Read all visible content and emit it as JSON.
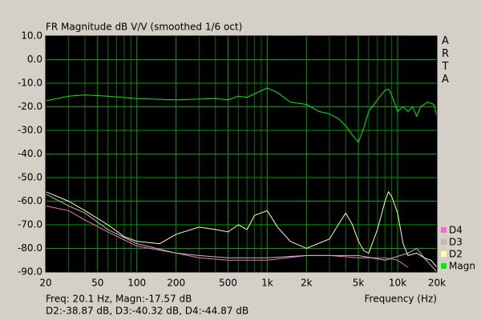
{
  "chart_data": {
    "type": "line",
    "title": "FR Magnitude dB V/V (smoothed 1/6 oct)",
    "brand": "ARTA",
    "xlabel": "Frequency (Hz)",
    "status": [
      "Freq: 20.1 Hz, Magn:-17.57 dB",
      "D2:-38.87 dB, D3:-40.32 dB, D4:-44.87 dB"
    ],
    "xscale": "log",
    "grid": true,
    "legend": "lower right",
    "xlim": [
      20,
      20000
    ],
    "ylim": [
      -90,
      10
    ],
    "xticks": [
      20,
      50,
      100,
      200,
      500,
      {
        "value": 1000,
        "label": "1k"
      },
      {
        "value": 2000,
        "label": "2k"
      },
      {
        "value": 5000,
        "label": "5k"
      },
      {
        "value": 10000,
        "label": "10k"
      },
      {
        "value": 20000,
        "label": "20k"
      }
    ],
    "xminorticks": [
      30,
      40,
      60,
      70,
      80,
      90,
      300,
      400,
      600,
      700,
      800,
      900,
      3000,
      4000,
      6000,
      7000,
      8000,
      9000
    ],
    "yticks": [
      {
        "value": 10,
        "label": "10.0"
      },
      {
        "value": 0,
        "label": "0.0"
      },
      {
        "value": -10,
        "label": "-10.0"
      },
      {
        "value": -20,
        "label": "-20.0"
      },
      {
        "value": -30,
        "label": "-30.0"
      },
      {
        "value": -40,
        "label": "-40.0"
      },
      {
        "value": -50,
        "label": "-50.0"
      },
      {
        "value": -60,
        "label": "-60.0"
      },
      {
        "value": -70,
        "label": "-70.0"
      },
      {
        "value": -80,
        "label": "-80.0"
      },
      {
        "value": -90,
        "label": "-90.0"
      }
    ],
    "series": [
      {
        "name": "D4",
        "color": "#ff66cc",
        "x": [
          20,
          30,
          40,
          60,
          100,
          200,
          300,
          500,
          1000,
          2000,
          3000,
          5000,
          8000,
          10000,
          12000
        ],
        "values": [
          -62,
          -64,
          -68,
          -73,
          -79,
          -82,
          -84,
          -85,
          -85,
          -83,
          -83,
          -84,
          -84,
          -85,
          -88
        ]
      },
      {
        "name": "D3",
        "color": "#bbbbbb",
        "x": [
          20,
          30,
          40,
          60,
          100,
          200,
          300,
          500,
          1000,
          2000,
          3000,
          5000,
          8000,
          12000,
          14000,
          16000,
          20000
        ],
        "values": [
          -57,
          -62,
          -65,
          -72,
          -78,
          -82,
          -83,
          -84,
          -84,
          -83,
          -83,
          -83,
          -85,
          -82,
          -80,
          -84,
          -90
        ]
      },
      {
        "name": "D2",
        "color": "#ffffaa",
        "x": [
          20,
          30,
          40,
          60,
          80,
          100,
          150,
          200,
          300,
          400,
          500,
          600,
          700,
          800,
          1000,
          1200,
          1500,
          2000,
          3000,
          3500,
          4000,
          4500,
          5000,
          5500,
          6000,
          7000,
          8000,
          8500,
          9000,
          10000,
          11000,
          12000,
          14000,
          16000,
          18000,
          20000
        ],
        "values": [
          -56,
          -60,
          -64,
          -70,
          -75,
          -77,
          -78,
          -74,
          -71,
          -72,
          -73,
          -70,
          -72,
          -66,
          -64,
          -71,
          -77,
          -80,
          -76,
          -70,
          -65,
          -70,
          -77,
          -81,
          -82,
          -72,
          -60,
          -56,
          -58,
          -65,
          -78,
          -83,
          -82,
          -84,
          -85,
          -88
        ]
      },
      {
        "name": "Magn",
        "color": "#00ee00",
        "x": [
          20,
          30,
          40,
          60,
          100,
          200,
          400,
          500,
          600,
          700,
          1000,
          1200,
          1500,
          2000,
          2500,
          3000,
          3500,
          4000,
          4500,
          5000,
          5500,
          6000,
          7000,
          8000,
          8500,
          9000,
          10000,
          11000,
          12000,
          13000,
          14000,
          15000,
          17000,
          19000,
          20000
        ],
        "values": [
          -17.5,
          -15.5,
          -15,
          -15.5,
          -16.5,
          -17,
          -16.5,
          -17,
          -15.5,
          -16,
          -12,
          -14,
          -18,
          -19,
          -22,
          -23,
          -25,
          -28,
          -32,
          -35,
          -29,
          -22,
          -17,
          -13,
          -12.5,
          -15,
          -22,
          -20,
          -22,
          -20,
          -24,
          -20,
          -18,
          -19,
          -24
        ]
      }
    ]
  }
}
